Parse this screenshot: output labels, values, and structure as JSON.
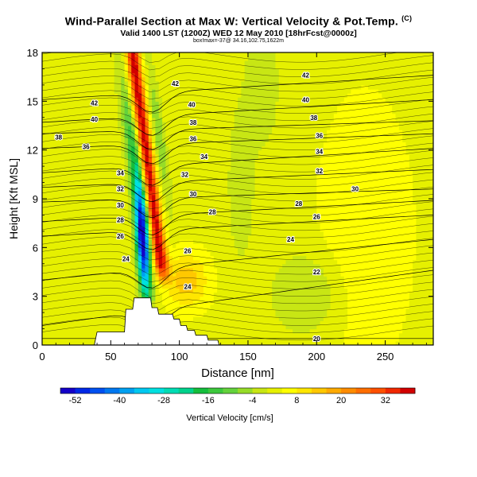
{
  "header": {
    "title": "Wind-Parallel Section at Max W: Vertical Velocity & Pot.Temp.",
    "title_mark": "(C)",
    "subtitle": "Valid 1400 LST (1200Z) WED 12 May 2010 [18hrFcst@0000z]",
    "subsubtitle": "box!max=-37@ 34.16,102.75,1622m"
  },
  "chart_data": {
    "type": "heatmap",
    "title": "Wind-Parallel Section at Max W: Vertical Velocity & Pot.Temp.",
    "xlabel": "Distance [nm]",
    "ylabel": "Height [Kft MSL]",
    "xlim": [
      0,
      285
    ],
    "ylim": [
      0,
      18
    ],
    "x_ticks": [
      "0",
      "50",
      "100",
      "150",
      "200",
      "250"
    ],
    "y_ticks": [
      "0",
      "3",
      "6",
      "9",
      "12",
      "15",
      "18"
    ],
    "colorbar": {
      "label": "Vertical Velocity [cm/s]",
      "ticks": [
        "-52",
        "-40",
        "-28",
        "-16",
        "-4",
        "8",
        "20",
        "32"
      ],
      "range": [
        -56,
        40
      ],
      "bins": [
        {
          "lo": -56,
          "color": "#1400c8"
        },
        {
          "lo": -52,
          "color": "#0028e6"
        },
        {
          "lo": -48,
          "color": "#0050f0"
        },
        {
          "lo": -44,
          "color": "#0078f0"
        },
        {
          "lo": -40,
          "color": "#00a0f0"
        },
        {
          "lo": -36,
          "color": "#00c8f0"
        },
        {
          "lo": -32,
          "color": "#00e0e0"
        },
        {
          "lo": -28,
          "color": "#00dcb4"
        },
        {
          "lo": -24,
          "color": "#00d28c"
        },
        {
          "lo": -20,
          "color": "#14be3c"
        },
        {
          "lo": -16,
          "color": "#3cc83c"
        },
        {
          "lo": -12,
          "color": "#64d23c"
        },
        {
          "lo": -8,
          "color": "#96dc28"
        },
        {
          "lo": -4,
          "color": "#c8e614"
        },
        {
          "lo": 0,
          "color": "#e6f000"
        },
        {
          "lo": 4,
          "color": "#ffff00"
        },
        {
          "lo": 8,
          "color": "#ffe600"
        },
        {
          "lo": 12,
          "color": "#ffc800"
        },
        {
          "lo": 16,
          "color": "#ffaa00"
        },
        {
          "lo": 20,
          "color": "#ff8c00"
        },
        {
          "lo": 24,
          "color": "#ff6e00"
        },
        {
          "lo": 28,
          "color": "#ff5000"
        },
        {
          "lo": 32,
          "color": "#f02800"
        },
        {
          "lo": 36,
          "color": "#d20000"
        }
      ]
    },
    "background_w": 0,
    "features": [
      {
        "name": "updraft_band",
        "x": [
          68,
          90
        ],
        "y": [
          4.0,
          18.0
        ],
        "peak_w": 38
      },
      {
        "name": "downdraft_core",
        "x": [
          60,
          84
        ],
        "y": [
          3.5,
          10.0
        ],
        "peak_w": -50
      },
      {
        "name": "weak_updraft_low",
        "x": [
          85,
          130
        ],
        "y": [
          2.5,
          5.5
        ],
        "peak_w": 14
      },
      {
        "name": "weak_downdraft_east",
        "x": [
          170,
          220
        ],
        "y": [
          1.0,
          6.0
        ],
        "peak_w": -8
      }
    ],
    "terrain_kft": [
      {
        "x": 0,
        "h": 0
      },
      {
        "x": 38,
        "h": 0
      },
      {
        "x": 40,
        "h": 0.8
      },
      {
        "x": 60,
        "h": 0.8
      },
      {
        "x": 61,
        "h": 2.2
      },
      {
        "x": 66,
        "h": 2.2
      },
      {
        "x": 67,
        "h": 2.9
      },
      {
        "x": 79,
        "h": 2.9
      },
      {
        "x": 80,
        "h": 2.3
      },
      {
        "x": 84,
        "h": 2.3
      },
      {
        "x": 85,
        "h": 1.9
      },
      {
        "x": 95,
        "h": 1.9
      },
      {
        "x": 96,
        "h": 1.6
      },
      {
        "x": 100,
        "h": 1.6
      },
      {
        "x": 101,
        "h": 1.2
      },
      {
        "x": 105,
        "h": 1.2
      },
      {
        "x": 106,
        "h": 0.9
      },
      {
        "x": 111,
        "h": 0.9
      },
      {
        "x": 112,
        "h": 0.6
      },
      {
        "x": 120,
        "h": 0.6
      },
      {
        "x": 121,
        "h": 0.3
      },
      {
        "x": 128,
        "h": 0.3
      },
      {
        "x": 129,
        "h": 0
      },
      {
        "x": 285,
        "h": 0
      }
    ],
    "theta_contours": [
      {
        "label": "20",
        "y0": 0.4,
        "y1": 0.4
      },
      {
        "label": "22",
        "y0": 1.2,
        "y1": 4.6
      },
      {
        "label": "24",
        "y0": 4.0,
        "y1": 6.5
      },
      {
        "label": "26",
        "y0": 6.7,
        "y1": 8.0
      },
      {
        "label": "28",
        "y0": 7.6,
        "y1": 8.9
      },
      {
        "label": "30",
        "y0": 8.8,
        "y1": 9.6
      },
      {
        "label": "32",
        "y0": 9.7,
        "y1": 10.8
      },
      {
        "label": "34",
        "y0": 10.6,
        "y1": 12.1
      },
      {
        "label": "36",
        "y0": 12.1,
        "y1": 13.0
      },
      {
        "label": "38",
        "y0": 13.0,
        "y1": 13.8
      },
      {
        "label": "40",
        "y0": 13.7,
        "y1": 15.1
      },
      {
        "label": "42",
        "y0": 15.1,
        "y1": 16.6
      }
    ],
    "contour_labels": [
      {
        "text": "38",
        "x": 12,
        "y": 12.8
      },
      {
        "text": "36",
        "x": 32,
        "y": 12.2
      },
      {
        "text": "40",
        "x": 38,
        "y": 13.9
      },
      {
        "text": "42",
        "x": 38,
        "y": 14.9
      },
      {
        "text": "34",
        "x": 57,
        "y": 10.6
      },
      {
        "text": "32",
        "x": 57,
        "y": 9.6
      },
      {
        "text": "30",
        "x": 57,
        "y": 8.6
      },
      {
        "text": "28",
        "x": 57,
        "y": 7.7
      },
      {
        "text": "26",
        "x": 57,
        "y": 6.7
      },
      {
        "text": "24",
        "x": 61,
        "y": 5.3
      },
      {
        "text": "42",
        "x": 97,
        "y": 16.1
      },
      {
        "text": "40",
        "x": 109,
        "y": 14.8
      },
      {
        "text": "38",
        "x": 110,
        "y": 13.7
      },
      {
        "text": "36",
        "x": 110,
        "y": 12.7
      },
      {
        "text": "34",
        "x": 118,
        "y": 11.6
      },
      {
        "text": "32",
        "x": 104,
        "y": 10.5
      },
      {
        "text": "30",
        "x": 110,
        "y": 9.3
      },
      {
        "text": "28",
        "x": 124,
        "y": 8.2
      },
      {
        "text": "26",
        "x": 106,
        "y": 5.8
      },
      {
        "text": "24",
        "x": 106,
        "y": 3.6
      },
      {
        "text": "42",
        "x": 192,
        "y": 16.6
      },
      {
        "text": "40",
        "x": 192,
        "y": 15.1
      },
      {
        "text": "38",
        "x": 198,
        "y": 14.0
      },
      {
        "text": "36",
        "x": 202,
        "y": 12.9
      },
      {
        "text": "34",
        "x": 202,
        "y": 11.9
      },
      {
        "text": "32",
        "x": 202,
        "y": 10.7
      },
      {
        "text": "30",
        "x": 228,
        "y": 9.6
      },
      {
        "text": "28",
        "x": 187,
        "y": 8.7
      },
      {
        "text": "26",
        "x": 200,
        "y": 7.9
      },
      {
        "text": "24",
        "x": 181,
        "y": 6.5
      },
      {
        "text": "22",
        "x": 200,
        "y": 4.5
      },
      {
        "text": "20",
        "x": 200,
        "y": 0.4
      }
    ]
  }
}
